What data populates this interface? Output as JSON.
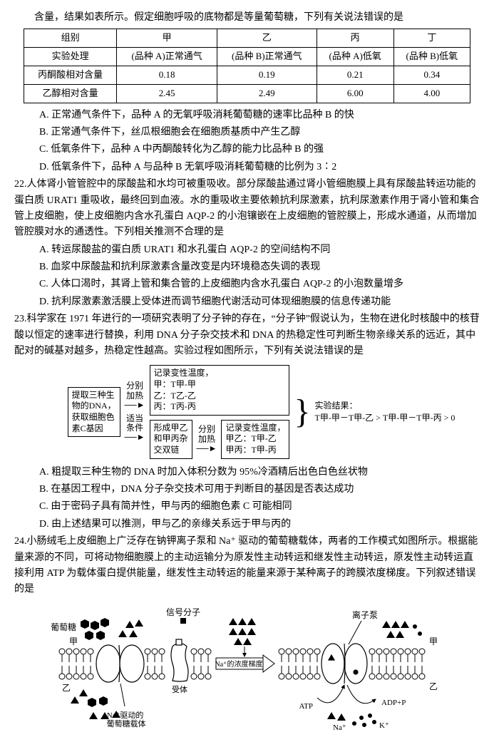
{
  "q21": {
    "intro": "含量，结果如表所示。假定细胞呼吸的底物都是等量葡萄糖，下列有关说法错误的是",
    "table": {
      "headers": [
        "组别",
        "甲",
        "乙",
        "丙",
        "丁"
      ],
      "rows": [
        [
          "实验处理",
          "(品种 A)正常通气",
          "(品种 B)正常通气",
          "(品种 A)低氧",
          "(品种 B)低氧"
        ],
        [
          "丙酮酸相对含量",
          "0.18",
          "0.19",
          "0.21",
          "0.34"
        ],
        [
          "乙醇相对含量",
          "2.45",
          "2.49",
          "6.00",
          "4.00"
        ]
      ]
    },
    "opts": {
      "A": "A. 正常通气条件下，品种 A 的无氧呼吸消耗葡萄糖的速率比品种 B 的快",
      "B": "B. 正常通气条件下，丝瓜根细胞会在细胞质基质中产生乙醇",
      "C": "C. 低氧条件下，品种 A 中丙酮酸转化为乙醇的能力比品种 B 的强",
      "D": "D. 低氧条件下，品种 A 与品种 B 无氧呼吸消耗葡萄糖的比例为 3∶2"
    }
  },
  "q22": {
    "num": "22.",
    "stem": "人体肾小管管腔中的尿酸盐和水均可被重吸收。部分尿酸盐通过肾小管细胞膜上具有尿酸盐转运功能的蛋白质 URAT1 重吸收，最终回到血液。水的重吸收主要依赖抗利尿激素，抗利尿激素作用于肾小管和集合管上皮细胞，使上皮细胞内含水孔蛋白 AQP-2 的小泡镶嵌在上皮细胞的管腔膜上，形成水通道，从而增加管腔膜对水的通透性。下列相关推测不合理的是",
    "opts": {
      "A": "A. 转运尿酸盐的蛋白质 URAT1 和水孔蛋白 AQP-2 的空间结构不同",
      "B": "B. 血浆中尿酸盐和抗利尿激素含量改变是内环境稳态失调的表现",
      "C": "C. 人体口渴时，其肾上管和集合管的上皮细胞内含水孔蛋白 AQP-2 的小泡数量增多",
      "D": "D. 抗利尿激素激活膜上受体进而调节细胞代谢活动可体现细胞膜的信息传递功能"
    }
  },
  "q23": {
    "num": "23.",
    "stem": "科学家在 1971 年进行的一项研究表明了分子钟的存在，“分子钟”假说认为，生物在进化时核酸中的核苷酸以恒定的速率进行替换，利用 DNA 分子杂交技术和 DNA 的热稳定性可判断生物亲缘关系的远近，其中配对的碱基对越多，热稳定性越高。实验过程如图所示，下列有关说法错误的是",
    "flow": {
      "box1": "提取三种生\n物的DNA，\n获取细胞色\n素C基因",
      "arr1a": "分别\n加热",
      "box2a": "记录变性温度，\n甲：T甲-甲\n乙：T乙-乙\n丙：T丙-丙",
      "arr1b": "适当\n条件",
      "box2b": "形成甲乙\n和甲丙杂\n交双链",
      "arr2": "分别\n加热",
      "box3": "记录变性温度，\n甲乙：T甲-乙\n甲丙：T甲-丙",
      "result_label": "实验结果：",
      "result_formula": "T甲-甲－T甲-乙 > T甲-甲－T甲-丙 > 0"
    },
    "opts": {
      "A": "A. 粗提取三种生物的 DNA 时加入体积分数为 95%冷酒精后出色白色丝状物",
      "B": "B. 在基因工程中，DNA 分子杂交技术可用于判断目的基因是否表达成功",
      "C": "C. 由于密码子具有简并性，甲与丙的细胞色素 C 可能相同",
      "D": "D. 由上述结果可以推测，甲与乙的亲缘关系远于甲与丙的"
    }
  },
  "q24": {
    "num": "24.",
    "stem": "小肠绒毛上皮细胞上广泛存在钠钾离子泵和 Na⁺ 驱动的葡萄糖载体，两者的工作模式如图所示。根据能量来源的不同，可将动物细胞膜上的主动运输分为原发性主动转运和继发性主动转运，原发性主动转运直接利用 ATP 为载体蛋白提供能量，继发性主动转运的能量来源于某种离子的跨膜浓度梯度。下列叙述错误的是",
    "labels": {
      "signal": "信号分子",
      "glucose": "葡萄糖",
      "jia": "甲",
      "yi": "乙",
      "receptor": "受体",
      "gradient": "Na⁺的浓度梯度",
      "carrier": "Na⁺驱动的\n葡萄糖载体",
      "pump": "离子泵",
      "atp": "ATP",
      "adp": "ADP+P",
      "na": "Na⁺",
      "k": "K⁺"
    }
  },
  "style": {
    "text_color": "#000000",
    "bg_color": "#ffffff",
    "border_color": "#000000",
    "font_family": "SimSun",
    "base_fontsize": 14,
    "small_fontsize": 12
  }
}
